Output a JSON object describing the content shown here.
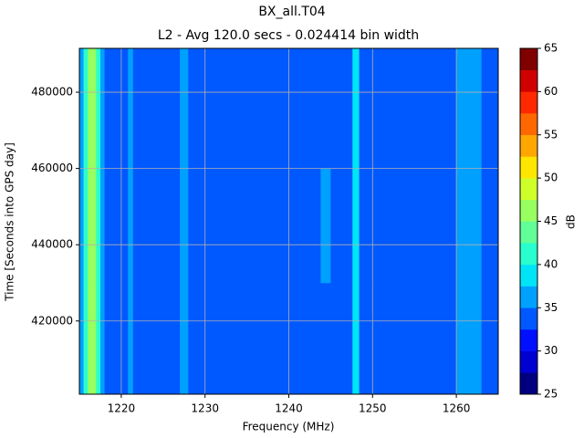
{
  "chart_data": {
    "type": "heatmap",
    "title": "BX_all.T04",
    "subtitle": "L2 - Avg 120.0 secs - 0.024414 bin width",
    "x_label": "Frequency (MHz)",
    "y_label": "Time [Seconds into GPS day]",
    "xbins": [
      1215,
      1215.5,
      1216,
      1217,
      1217.5,
      1218,
      1220.8,
      1221.4,
      1227,
      1228,
      1243.8,
      1245,
      1247.6,
      1248.4,
      1260,
      1263,
      1265
    ],
    "ybins": [
      400800,
      430000,
      460000,
      491500
    ],
    "z": [
      [
        37,
        42,
        46,
        42,
        37,
        34,
        35.5,
        34,
        36,
        34,
        34,
        34,
        39,
        34,
        36,
        34
      ],
      [
        37,
        42,
        46,
        42,
        37,
        34,
        35.5,
        34,
        36,
        34,
        36,
        34,
        39,
        34,
        36,
        34
      ],
      [
        37,
        42,
        46,
        42,
        37,
        34,
        35.5,
        34,
        36,
        34,
        34,
        34,
        39,
        34,
        36,
        34
      ]
    ],
    "xlim": [
      1215,
      1265
    ],
    "xticks": [
      1220,
      1230,
      1240,
      1250,
      1260
    ],
    "ylim": [
      400800,
      491500
    ],
    "yticks": [
      420000,
      440000,
      460000,
      480000
    ],
    "grid": true,
    "colorbar": {
      "label": "dB",
      "levels": [
        25,
        27.5,
        30,
        32.5,
        35,
        37.5,
        40,
        42.5,
        45,
        47.5,
        50,
        52.5,
        55,
        57.5,
        60,
        62.5,
        65
      ],
      "colors": [
        "#000080",
        "#0000d1",
        "#0010ff",
        "#0058ff",
        "#00a0ff",
        "#00e4f8",
        "#29ffce",
        "#60ff97",
        "#97ff60",
        "#ceff29",
        "#ffe600",
        "#ffa700",
        "#ff6800",
        "#ff2900",
        "#d10000",
        "#800000"
      ],
      "ticks": [
        25,
        30,
        35,
        40,
        45,
        50,
        55,
        60,
        65
      ]
    }
  }
}
